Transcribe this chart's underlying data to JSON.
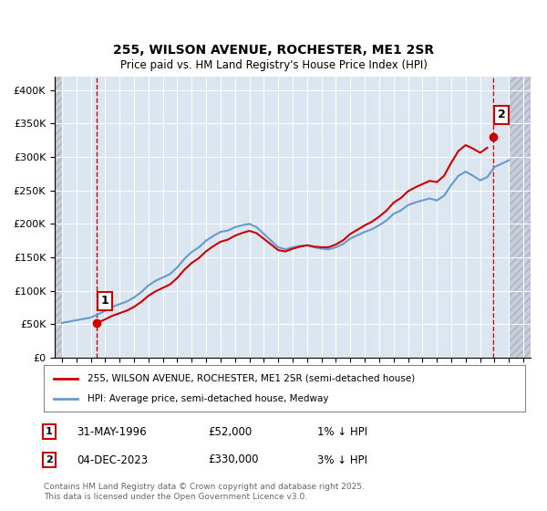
{
  "title1": "255, WILSON AVENUE, ROCHESTER, ME1 2SR",
  "title2": "Price paid vs. HM Land Registry's House Price Index (HPI)",
  "ylabel": "",
  "ylim": [
    0,
    420000
  ],
  "yticks": [
    0,
    50000,
    100000,
    150000,
    200000,
    250000,
    300000,
    350000,
    400000
  ],
  "ytick_labels": [
    "£0",
    "£50K",
    "£100K",
    "£150K",
    "£200K",
    "£250K",
    "£300K",
    "£350K",
    "£400K"
  ],
  "xlim_start": 1993.5,
  "xlim_end": 2026.5,
  "xticks": [
    1994,
    1995,
    1996,
    1997,
    1998,
    1999,
    2000,
    2001,
    2002,
    2003,
    2004,
    2005,
    2006,
    2007,
    2008,
    2009,
    2010,
    2011,
    2012,
    2013,
    2014,
    2015,
    2016,
    2017,
    2018,
    2019,
    2020,
    2021,
    2022,
    2023,
    2024,
    2025,
    2026
  ],
  "background_color": "#ffffff",
  "plot_bg_color": "#dce6f1",
  "grid_color": "#ffffff",
  "hatch_color": "#c0c8d8",
  "line_color_red": "#cc0000",
  "line_color_blue": "#6699cc",
  "point1_x": 1996.416,
  "point1_y": 52000,
  "point2_x": 2023.92,
  "point2_y": 330000,
  "vline1_x": 1996.416,
  "vline2_x": 2023.92,
  "legend_line1": "255, WILSON AVENUE, ROCHESTER, ME1 2SR (semi-detached house)",
  "legend_line2": "HPI: Average price, semi-detached house, Medway",
  "annotation1_label": "1",
  "annotation2_label": "2",
  "table_row1": [
    "1",
    "31-MAY-1996",
    "£52,000",
    "1% ↓ HPI"
  ],
  "table_row2": [
    "2",
    "04-DEC-2023",
    "£330,000",
    "3% ↓ HPI"
  ],
  "footer": "Contains HM Land Registry data © Crown copyright and database right 2025.\nThis data is licensed under the Open Government Licence v3.0.",
  "hpi_years": [
    1994,
    1994.5,
    1995,
    1995.5,
    1996,
    1996.5,
    1997,
    1997.5,
    1998,
    1998.5,
    1999,
    1999.5,
    2000,
    2000.5,
    2001,
    2001.5,
    2002,
    2002.5,
    2003,
    2003.5,
    2004,
    2004.5,
    2005,
    2005.5,
    2006,
    2006.5,
    2007,
    2007.5,
    2008,
    2008.5,
    2009,
    2009.5,
    2010,
    2010.5,
    2011,
    2011.5,
    2012,
    2012.5,
    2013,
    2013.5,
    2014,
    2014.5,
    2015,
    2015.5,
    2016,
    2016.5,
    2017,
    2017.5,
    2018,
    2018.5,
    2019,
    2019.5,
    2020,
    2020.5,
    2021,
    2021.5,
    2022,
    2022.5,
    2023,
    2023.5,
    2024,
    2024.5,
    2025
  ],
  "hpi_values": [
    52000,
    54000,
    56000,
    58000,
    60000,
    65000,
    70000,
    76000,
    80000,
    84000,
    90000,
    98000,
    108000,
    115000,
    120000,
    125000,
    135000,
    148000,
    158000,
    165000,
    175000,
    182000,
    188000,
    190000,
    195000,
    198000,
    200000,
    195000,
    185000,
    175000,
    165000,
    162000,
    165000,
    167000,
    168000,
    165000,
    163000,
    162000,
    165000,
    170000,
    178000,
    183000,
    188000,
    192000,
    198000,
    205000,
    215000,
    220000,
    228000,
    232000,
    235000,
    238000,
    235000,
    242000,
    258000,
    272000,
    278000,
    272000,
    265000,
    270000,
    285000,
    290000,
    295000
  ],
  "price_years": [
    1996.416,
    2023.92
  ],
  "price_values": [
    52000,
    330000
  ]
}
